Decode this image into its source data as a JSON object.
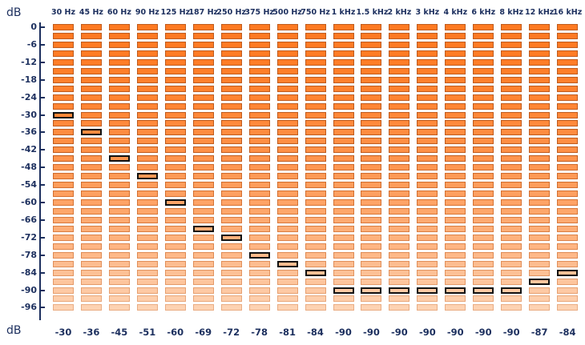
{
  "axis_unit_top": "dB",
  "axis_unit_bottom": "dB",
  "y_ticks": [
    "0",
    "-6",
    "-12",
    "-18",
    "-24",
    "-30",
    "-36",
    "-42",
    "-48",
    "-54",
    "-60",
    "-66",
    "-72",
    "-78",
    "-84",
    "-90",
    "-96"
  ],
  "bands": [
    {
      "freq": "30 Hz",
      "value": "-30",
      "peak_db": -30
    },
    {
      "freq": "45 Hz",
      "value": "-36",
      "peak_db": -36
    },
    {
      "freq": "60 Hz",
      "value": "-45",
      "peak_db": -45
    },
    {
      "freq": "90 Hz",
      "value": "-51",
      "peak_db": -51
    },
    {
      "freq": "125 Hz",
      "value": "-60",
      "peak_db": -60
    },
    {
      "freq": "187 Hz",
      "value": "-69",
      "peak_db": -69
    },
    {
      "freq": "250 Hz",
      "value": "-72",
      "peak_db": -72
    },
    {
      "freq": "375 Hz",
      "value": "-78",
      "peak_db": -78
    },
    {
      "freq": "500 Hz",
      "value": "-81",
      "peak_db": -81
    },
    {
      "freq": "750 Hz",
      "value": "-84",
      "peak_db": -84
    },
    {
      "freq": "1 kHz",
      "value": "-90",
      "peak_db": -90
    },
    {
      "freq": "1.5 kHz",
      "value": "-90",
      "peak_db": -90
    },
    {
      "freq": "2 kHz",
      "value": "-90",
      "peak_db": -90
    },
    {
      "freq": "3 kHz",
      "value": "-90",
      "peak_db": -90
    },
    {
      "freq": "4 kHz",
      "value": "-90",
      "peak_db": -90
    },
    {
      "freq": "6 kHz",
      "value": "-90",
      "peak_db": -90
    },
    {
      "freq": "8 kHz",
      "value": "-90",
      "peak_db": -90
    },
    {
      "freq": "12 kHz",
      "value": "-87",
      "peak_db": -87
    },
    {
      "freq": "16 kHz",
      "value": "-84",
      "peak_db": -84
    }
  ],
  "meter": {
    "db_min": -99,
    "db_max": 0,
    "db_per_segment": 3,
    "colors": {
      "segment_hot": "#ff7a22",
      "segment_cool": "#fdd2b2",
      "segment_border": "#bf5a1c",
      "peak_border": "#111111",
      "label_text": "#1c2f5e"
    }
  }
}
